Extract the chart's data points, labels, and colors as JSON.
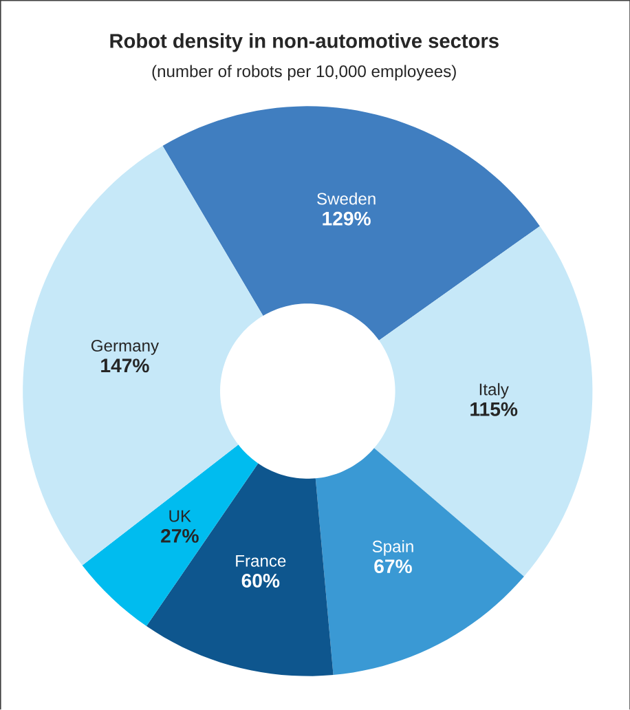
{
  "chart_data": {
    "type": "donut",
    "title": "Robot density in non-automotive sectors",
    "subtitle": "(number of robots per 10,000 employees)",
    "categories": [
      "Sweden",
      "Italy",
      "Spain",
      "France",
      "UK",
      "Germany"
    ],
    "values": [
      129,
      115,
      67,
      60,
      27,
      147
    ],
    "value_labels": [
      "129%",
      "115%",
      "67%",
      "60%",
      "27%",
      "147%"
    ],
    "colors": [
      "#407ec0",
      "#c6e8f8",
      "#3a99d4",
      "#0e568e",
      "#00bcef",
      "#c6e8f8"
    ]
  }
}
